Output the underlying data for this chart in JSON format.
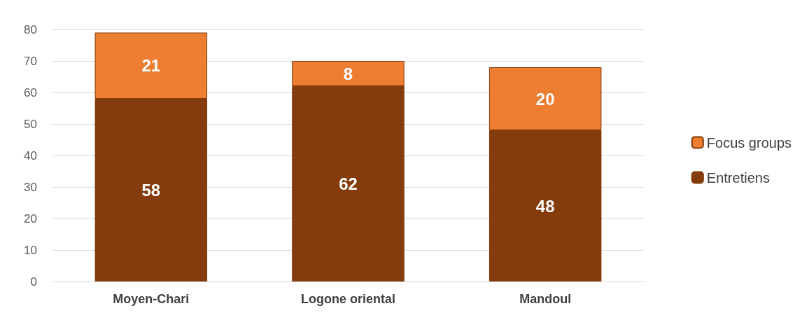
{
  "chart_data": {
    "type": "bar",
    "stacked": true,
    "categories": [
      "Moyen-Chari",
      "Logone oriental",
      "Mandoul"
    ],
    "series": [
      {
        "name": "Entretiens",
        "color": "#843c0c",
        "values": [
          58,
          62,
          48
        ]
      },
      {
        "name": "Focus groups",
        "color": "#ed7d31",
        "values": [
          21,
          8,
          20
        ]
      }
    ],
    "ylim": [
      0,
      80
    ],
    "yticks": [
      0,
      10,
      20,
      30,
      40,
      50,
      60,
      70,
      80
    ],
    "grid": "y",
    "legend": "right",
    "data_labels": true
  }
}
